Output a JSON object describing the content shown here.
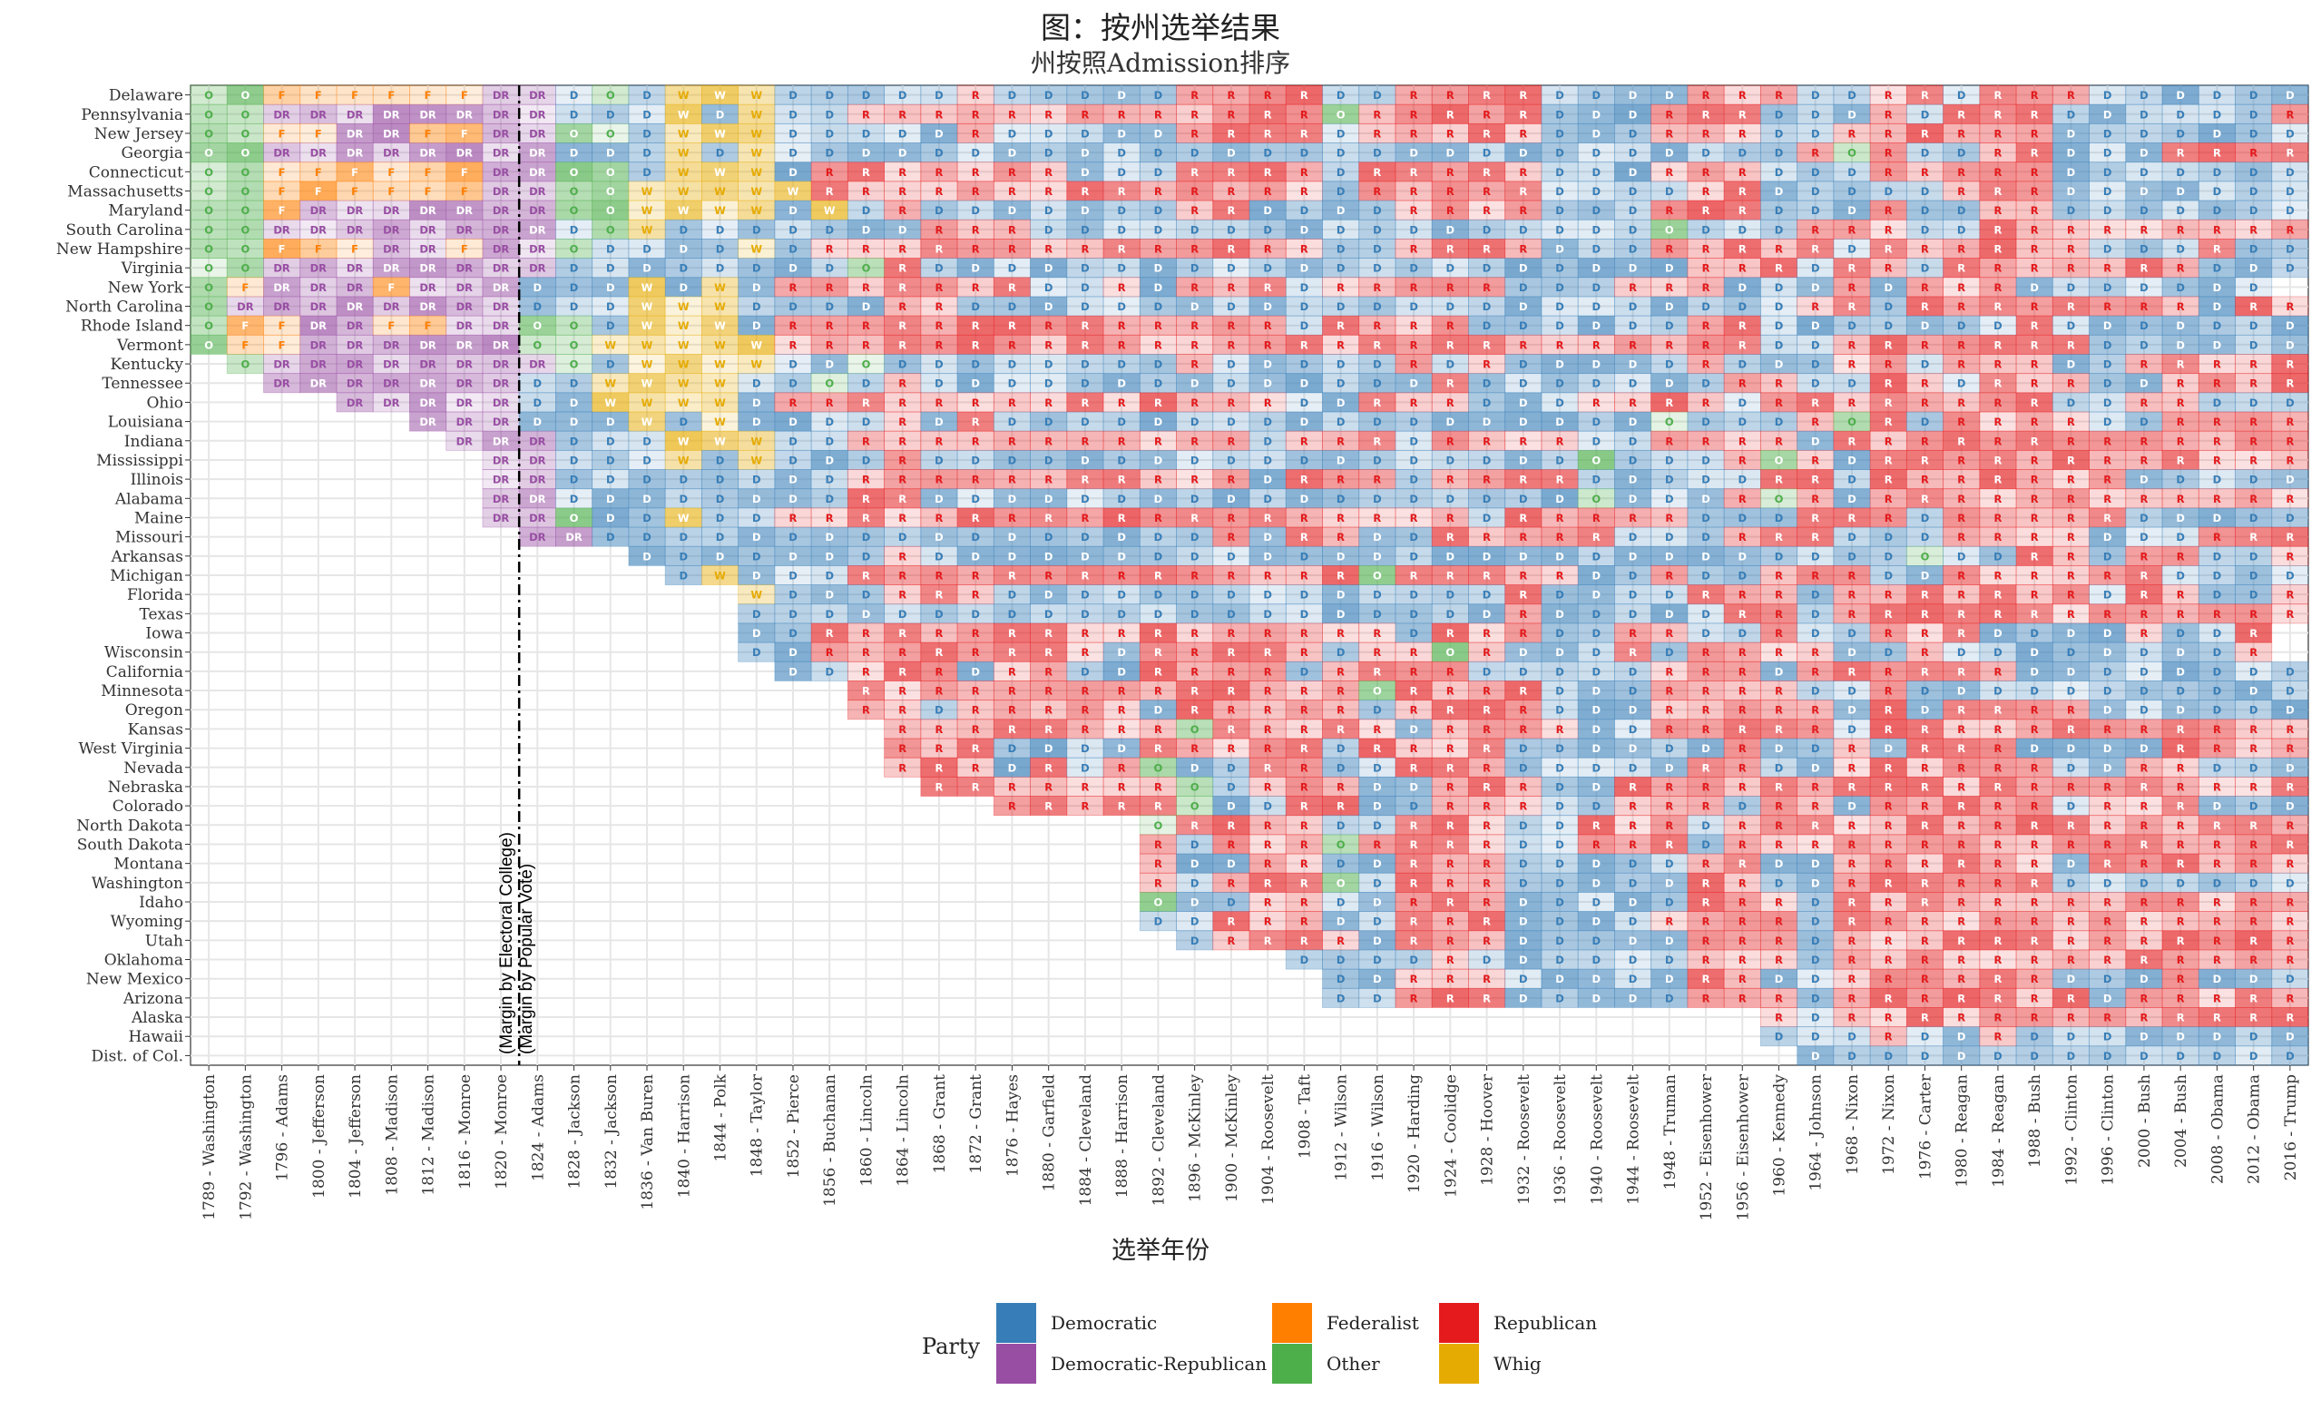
{
  "chart_data": {
    "type": "heatmap",
    "title": "图：按州选举结果",
    "subtitle": "州按照Admission排序",
    "xlabel": "选举年份",
    "ylabel": "",
    "annotation": [
      "(Margin by Electoral College)",
      "(Margin by Popular Vote)"
    ],
    "legend": {
      "title": "Party",
      "entries": [
        {
          "name": "Democratic",
          "code": "D",
          "color": "#377EB8"
        },
        {
          "name": "Democratic-Republican",
          "code": "DR",
          "color": "#984EA3"
        },
        {
          "name": "Federalist",
          "code": "F",
          "color": "#FF7F00"
        },
        {
          "name": "Other",
          "code": "O",
          "color": "#4DAF4A"
        },
        {
          "name": "Republican",
          "code": "R",
          "color": "#E41A1C"
        },
        {
          "name": "Whig",
          "code": "W",
          "color": "#E6AB02"
        }
      ]
    },
    "elections": [
      "1789 - Washington",
      "1792 - Washington",
      "1796 - Adams",
      "1800 - Jefferson",
      "1804 - Jefferson",
      "1808 - Madison",
      "1812 - Madison",
      "1816 - Monroe",
      "1820 - Monroe",
      "1824 - Adams",
      "1828 - Jackson",
      "1832 - Jackson",
      "1836 - Van Buren",
      "1840 - Harrison",
      "1844 - Polk",
      "1848 - Taylor",
      "1852 - Pierce",
      "1856 - Buchanan",
      "1860 - Lincoln",
      "1864 - Lincoln",
      "1868 - Grant",
      "1872 - Grant",
      "1876 - Hayes",
      "1880 - Garfield",
      "1884 - Cleveland",
      "1888 - Harrison",
      "1892 - Cleveland",
      "1896 - McKinley",
      "1900 - McKinley",
      "1904 - Roosevelt",
      "1908 - Taft",
      "1912 - Wilson",
      "1916 - Wilson",
      "1920 - Harding",
      "1924 - Coolidge",
      "1928 - Hoover",
      "1932 - Roosevelt",
      "1936 - Roosevelt",
      "1940 - Roosevelt",
      "1944 - Roosevelt",
      "1948 - Truman",
      "1952 - Eisenhower",
      "1956 - Eisenhower",
      "1960 - Kennedy",
      "1964 - Johnson",
      "1968 - Nixon",
      "1972 - Nixon",
      "1976 - Carter",
      "1980 - Reagan",
      "1984 - Reagan",
      "1988 - Bush",
      "1992 - Clinton",
      "1996 - Clinton",
      "2000 - Bush",
      "2004 - Bush",
      "2008 - Obama",
      "2012 - Obama",
      "2016 - Trump"
    ],
    "states": [
      {
        "name": "Delaware",
        "first": 1789,
        "results": "O O F F F F F F DR DR D O D W W W D D D D D R D D D D D R R R R D D R R R R D D D D R R R D D R R D R R R D D D D D D D"
      },
      {
        "name": "Pennsylvania",
        "first": 1789,
        "results": "O O DR DR DR DR DR DR DR DR D D D W D W D D R R R R R R R R R R R R R O R R R R R D D D R R R D D D R D R R R D D D D D D R"
      },
      {
        "name": "New Jersey",
        "first": 1789,
        "results": "O O F F DR DR F F DR DR O O D W W W D D D D D R D D D D D R R R R D R R R R R D D D R R R D D R R R R R R D D D D D D D"
      },
      {
        "name": "Georgia",
        "first": 1789,
        "results": "O O DR DR DR DR DR DR DR DR D D D W D W D D D D D D D D D D D D D D D D D D D D D D D D D D D D R O R D D R R D D D R R R R R R"
      },
      {
        "name": "Connecticut",
        "first": 1789,
        "results": "O O F F F F F F DR DR O O D W W W D R R R R R R R D D D R R R R D R R R R R D D D R R R D D D R R R R R D D D D D D D"
      },
      {
        "name": "Massachusetts",
        "first": 1789,
        "results": "O O F F F F F F DR DR O O W W W W W R R R R R R R R R R R R R R D R R R R R D D D D R R D D D D D R R R D D D D D D D"
      },
      {
        "name": "Maryland",
        "first": 1789,
        "results": "O O F DR DR DR DR DR DR DR O O W W W W D W D R D D D D D D D R R D D D D R R R R D D D R R R D D D R D D R R D D D D D D D"
      },
      {
        "name": "South Carolina",
        "first": 1789,
        "results": "O O DR DR DR DR DR DR DR DR D O W D D D D D D D R R R D D D D D D D D D D D D D D D D D O D D D R R R D D R R R R R R R R R"
      },
      {
        "name": "New Hampshire",
        "first": 1789,
        "results": "O O F F F DR DR F DR DR O D D D D W D R R R R R R R R R R R R R R D D R R R R D D D R R R R R D R R R R R R D D D R D D D D"
      },
      {
        "name": "Virginia",
        "first": 1789,
        "results": "O O DR DR DR DR DR DR DR DR D D D D D D D D O R D D D D D D D D D D D D D D D D D D D D D R R R D R R D R R R R R R R D D D"
      },
      {
        "name": "New York",
        "first": 1789,
        "results": "O F DR DR DR F DR DR DR D D D W D W D R R R R R R R D D R D R R R D R R R R R D D D R R R D D D R D R R R D D D D D D D"
      },
      {
        "name": "North Carolina",
        "first": 1789,
        "results": "O DR DR DR DR DR DR DR DR D D D W W W D D D D R R D D D D D D D D D D D D D D D D D D D D D D D R R D R R R R R R R R D R R"
      },
      {
        "name": "Rhode Island",
        "first": 1789,
        "results": "O F F DR DR F F DR DR O O D W W W D R R R R R R R R R R R R R R D R R R R D D D D D D R R D D D D D D D R D D D D D D D"
      },
      {
        "name": "Vermont",
        "first": 1789,
        "results": "O F F DR DR DR DR DR DR O O W W W W W R R R R R R R R R R R R R R R R R R R R R R R R R R R D D R R R R R R R D D D D D D D"
      },
      {
        "name": "Kentucky",
        "first": 1792,
        "results": "O DR DR DR DR DR DR DR DR O D W W W W D D O D D D D D D D D R D D D D D R D R D D D D D R D D D R R D R R R D D R R R R R"
      },
      {
        "name": "Tennessee",
        "first": 1796,
        "results": "DR DR DR DR DR DR DR D D W W W W D D O D R D D D D D D D D D D D D D D R D D D D D D D R R D D R R D R R R D D R R R R R"
      },
      {
        "name": "Ohio",
        "first": 1804,
        "results": "DR DR DR DR DR D D W W W W D R R R R R R R R R R R R R R D D R R R D D D R R R R D R R R R R R R R D D R R D D D R"
      },
      {
        "name": "Louisiana",
        "first": 1812,
        "results": "DR DR DR D D D W D W D D D D R D R D D D D D D D D D D D D D D D D D D O D D D R O R D R R R R D D R R R R R"
      },
      {
        "name": "Indiana",
        "first": 1816,
        "results": "DR DR DR D D D W W W D D R R R R R R R R R R R D R R R D R R R R D D R R R R D R R R R R R R R R R R R R D R R"
      },
      {
        "name": "Mississippi",
        "first": 1817,
        "results": "DR DR D D D W D W D D D R D D D D D D D D D D D D D D D D D D O D D D R O R D R R R R R R R R R R R R R"
      },
      {
        "name": "Illinois",
        "first": 1818,
        "results": "DR DR D D D D D D D D R R R R R R R R R R R D R R R D R R R R D D D D D R R D R R R R R R R D D D D D D D D D"
      },
      {
        "name": "Alabama",
        "first": 1819,
        "results": "DR DR D D D D D D D D R R D D D D D D D D D D D D D D D D D D O D D D R O R D R R R R R R R R R R R R R"
      },
      {
        "name": "Maine",
        "first": 1820,
        "results": "DR DR O D D W D D R R R R R R R R R R R R R R R R R R R D R R R R R D D D R R R D R R R R R D D D D D D D D"
      },
      {
        "name": "Missouri",
        "first": 1821,
        "results": "DR DR D D D D D D D D D D D D D D D D D R D R R D D R R R R R D D D R R R D D D R R R R D D D R R R R R"
      },
      {
        "name": "Arkansas",
        "first": 1836,
        "results": "D D D D D D D R D D D D D D D D D D D D D D D D D D D D D D D D D D D O D D R R D R R D D R R R R R"
      },
      {
        "name": "Michigan",
        "first": 1837,
        "results": "D W D D D R R R R R R R R R R R R R R O R R R R R D D R D D R R R D D R R R R R R D D D D D D R"
      },
      {
        "name": "Florida",
        "first": 1845,
        "results": "W D D D R R R D D D D D D D D D D D D D D R D D D D R R R D R R R R R R R D R R D D R"
      },
      {
        "name": "Texas",
        "first": 1845,
        "results": "D D D D D D D D D D D D D D D D D D D D D R D D D D D R R D R R R R R R R R R R R R R"
      },
      {
        "name": "Iowa",
        "first": 1846,
        "results": "D D R R R R R R R R R R R R R R R R D R R R D D R R D D R D D R R R D D D D R D D R"
      },
      {
        "name": "Wisconsin",
        "first": 1848,
        "results": "D D R R R R R R R R D R R R R R D R R O R D D D R D R R R R D D R D D D D D D D D R"
      },
      {
        "name": "California",
        "first": 1850,
        "results": "D D R R R D R R D D R R R R D R R R R D D D D D R R R D R R R R R R D D D D D D D D"
      },
      {
        "name": "Minnesota",
        "first": 1858,
        "results": "R R R R R R R R R R R R R R O R R R R D D D R R R R D D R D D D D D D D D D D D D"
      },
      {
        "name": "Oregon",
        "first": 1859,
        "results": "R R D R R R R R D R R R R R D R R R R D D D R R R R R D R D R R R R D D D D D D D"
      },
      {
        "name": "Kansas",
        "first": 1861,
        "results": "R R R R R R R R O R R R R R D R R R R D D R R R R R D R R R R R R R R R R R R R"
      },
      {
        "name": "West Virginia",
        "first": 1863,
        "results": "R R R D D D D R R R R R D R R R R D D D D D D R D D R D R R R D D D D R R R R R"
      },
      {
        "name": "Nevada",
        "first": 1864,
        "results": "R R R D R D R O D D R R D D R R R D D D D D R R D D R R R R R R D D R R D D D"
      },
      {
        "name": "Nebraska",
        "first": 1867,
        "results": "R R R R R R R O D R R R D D R R R D D R R R R R R R R R R R R R R R R R R R"
      },
      {
        "name": "Colorado",
        "first": 1876,
        "results": "R R R R R O D D R R D D R R R D D R R R D R R D R R R R R D R R R D D D"
      },
      {
        "name": "North Dakota",
        "first": 1889,
        "results": "O R R R R D D R R R D D R R R D R R R R R R R R R R R R R R R R R"
      },
      {
        "name": "South Dakota",
        "first": 1889,
        "results": "R D R R R O R R R R D D R R R D R R R R R R R R R R R R R R R R R"
      },
      {
        "name": "Montana",
        "first": 1889,
        "results": "R D D R R D D R R R D D D D D R R D D R R R R R R D R R R R R R R"
      },
      {
        "name": "Washington",
        "first": 1889,
        "results": "R D R R R O D R R R D D D D D R R D D R R R R R R D D D D D D D D"
      },
      {
        "name": "Idaho",
        "first": 1890,
        "results": "O D D R R D D R R R D D D D D R R R D R R R R R R R R R R R R R R"
      },
      {
        "name": "Wyoming",
        "first": 1890,
        "results": "D D R R R D D R R R D D D D R R R R D R R R R R R R R R R R R R R"
      },
      {
        "name": "Utah",
        "first": 1896,
        "results": "D R R R R D R R R D D D D D R R R D R R R R R R R R R R R R R R"
      },
      {
        "name": "Oklahoma",
        "first": 1907,
        "results": "D D D D R D D D D D D R R R D R R R R R R R R R R R R R R"
      },
      {
        "name": "New Mexico",
        "first": 1912,
        "results": "D D R R R D D D D D R R D D R R R R R R D D D R D D D"
      },
      {
        "name": "Arizona",
        "first": 1912,
        "results": "D D R R R D D D D D R R R D R R R R R R R D R R R R R"
      },
      {
        "name": "Alaska",
        "first": 1959,
        "results": "R D R R R R R R R R R R R R R"
      },
      {
        "name": "Hawaii",
        "first": 1959,
        "results": "D D D R D D R D D D D D D D D"
      },
      {
        "name": "Dist. of Col.",
        "first": 1961,
        "results": "D D D D D D D D D D D D D D"
      }
    ]
  }
}
